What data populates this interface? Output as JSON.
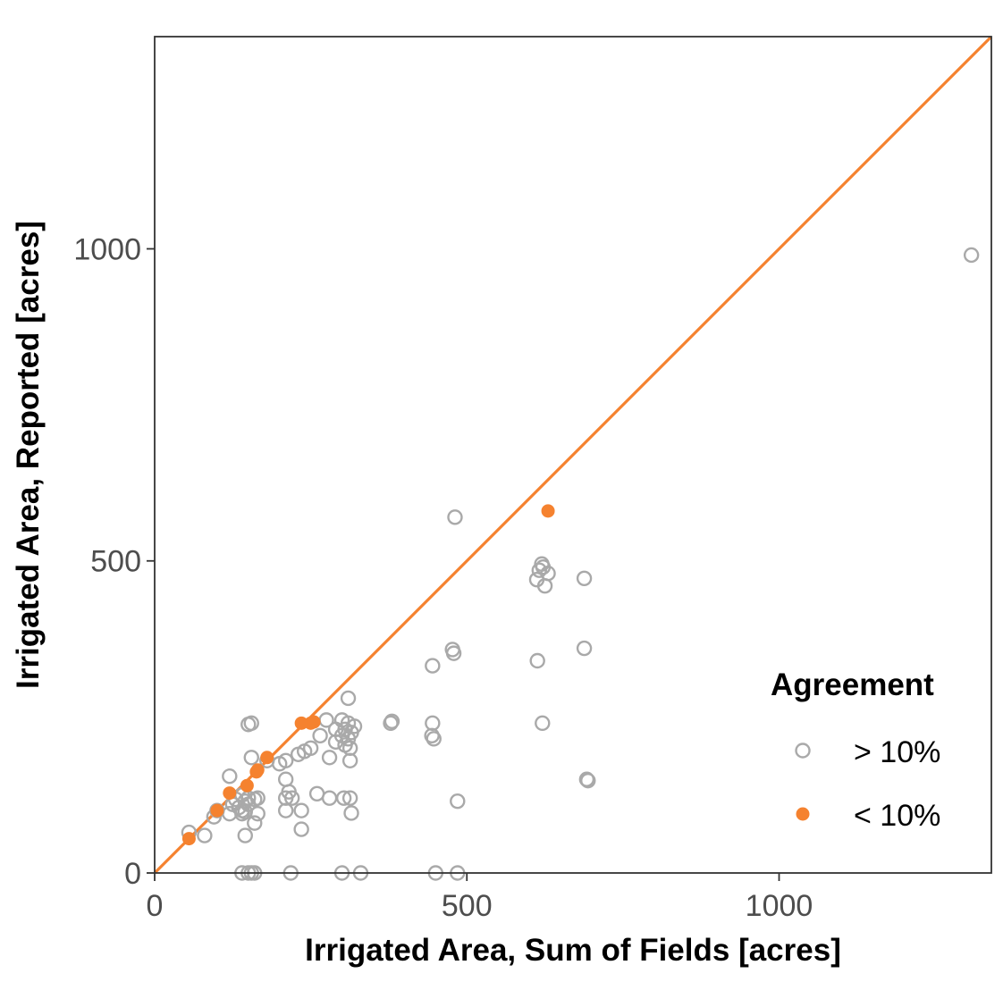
{
  "chart_data": {
    "type": "scatter",
    "xlabel": "Irrigated Area, Sum of Fields [acres]",
    "ylabel": "Irrigated Area, Reported [acres]",
    "xlim": [
      0,
      1340
    ],
    "ylim": [
      0,
      1340
    ],
    "x_ticks": [
      0,
      500,
      1000
    ],
    "y_ticks": [
      0,
      500,
      1000
    ],
    "grid": false,
    "reference_line": {
      "type": "identity",
      "slope": 1,
      "intercept": 0,
      "color": "#F5822F"
    },
    "legend": {
      "title": "Agreement",
      "placement": "inside-bottom-right",
      "entries": [
        {
          "label": "> 10%",
          "marker": "open-circle",
          "color": "#A9A9A9"
        },
        {
          "label": "< 10%",
          "marker": "filled-circle",
          "color": "#F5822F"
        }
      ]
    },
    "series": [
      {
        "name": "> 10%",
        "marker": "open-circle",
        "color": "#A9A9A9",
        "points": [
          [
            1308,
            990
          ],
          [
            481,
            570
          ],
          [
            620,
            495
          ],
          [
            622,
            490
          ],
          [
            616,
            485
          ],
          [
            630,
            480
          ],
          [
            612,
            470
          ],
          [
            625,
            460
          ],
          [
            688,
            472
          ],
          [
            688,
            360
          ],
          [
            477,
            358
          ],
          [
            479,
            352
          ],
          [
            445,
            332
          ],
          [
            613,
            340
          ],
          [
            621,
            240
          ],
          [
            445,
            240
          ],
          [
            444,
            220
          ],
          [
            447,
            215
          ],
          [
            380,
            243
          ],
          [
            378,
            240
          ],
          [
            310,
            280
          ],
          [
            300,
            245
          ],
          [
            310,
            240
          ],
          [
            305,
            230
          ],
          [
            290,
            230
          ],
          [
            315,
            225
          ],
          [
            300,
            220
          ],
          [
            320,
            235
          ],
          [
            310,
            215
          ],
          [
            290,
            210
          ],
          [
            305,
            205
          ],
          [
            313,
            200
          ],
          [
            313,
            180
          ],
          [
            275,
            245
          ],
          [
            265,
            220
          ],
          [
            250,
            200
          ],
          [
            240,
            195
          ],
          [
            230,
            190
          ],
          [
            280,
            185
          ],
          [
            155,
            240
          ],
          [
            150,
            238
          ],
          [
            155,
            185
          ],
          [
            180,
            180
          ],
          [
            200,
            175
          ],
          [
            210,
            180
          ],
          [
            210,
            150
          ],
          [
            120,
            155
          ],
          [
            210,
            120
          ],
          [
            260,
            127
          ],
          [
            215,
            130
          ],
          [
            220,
            120
          ],
          [
            280,
            120
          ],
          [
            303,
            120
          ],
          [
            313,
            120
          ],
          [
            140,
            125
          ],
          [
            150,
            120
          ],
          [
            130,
            118
          ],
          [
            145,
            115
          ],
          [
            160,
            118
          ],
          [
            165,
            120
          ],
          [
            125,
            110
          ],
          [
            150,
            110
          ],
          [
            135,
            105
          ],
          [
            140,
            100
          ],
          [
            145,
            98
          ],
          [
            120,
            95
          ],
          [
            100,
            100
          ],
          [
            95,
            90
          ],
          [
            140,
            95
          ],
          [
            165,
            95
          ],
          [
            210,
            100
          ],
          [
            235,
            100
          ],
          [
            315,
            96
          ],
          [
            160,
            80
          ],
          [
            235,
            70
          ],
          [
            145,
            60
          ],
          [
            80,
            60
          ],
          [
            55,
            65
          ],
          [
            485,
            115
          ],
          [
            692,
            150
          ],
          [
            694,
            148
          ],
          [
            140,
            0
          ],
          [
            150,
            0
          ],
          [
            155,
            0
          ],
          [
            160,
            0
          ],
          [
            218,
            0
          ],
          [
            300,
            0
          ],
          [
            330,
            0
          ],
          [
            450,
            0
          ],
          [
            485,
            0
          ]
        ]
      },
      {
        "name": "< 10%",
        "marker": "filled-circle",
        "color": "#F5822F",
        "points": [
          [
            630,
            580
          ],
          [
            250,
            240
          ],
          [
            255,
            242
          ],
          [
            235,
            240
          ],
          [
            180,
            185
          ],
          [
            163,
            162
          ],
          [
            165,
            165
          ],
          [
            148,
            140
          ],
          [
            120,
            128
          ],
          [
            100,
            100
          ],
          [
            55,
            55
          ]
        ]
      }
    ]
  }
}
